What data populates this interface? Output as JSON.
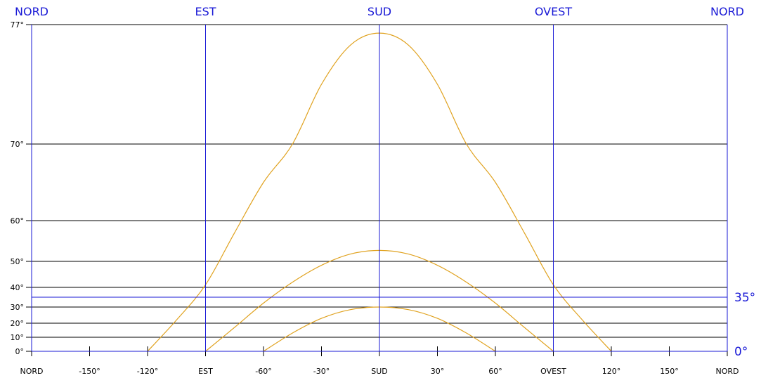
{
  "chart_data": {
    "type": "line",
    "title": "",
    "xlabel": "",
    "ylabel": "",
    "top_labels": [
      {
        "x": -180,
        "text": "NORD"
      },
      {
        "x": -90,
        "text": "EST"
      },
      {
        "x": 0,
        "text": "SUD"
      },
      {
        "x": 90,
        "text": "OVEST"
      },
      {
        "x": 180,
        "text": "NORD"
      }
    ],
    "x_ticks": [
      {
        "x": -180,
        "text": "NORD"
      },
      {
        "x": -150,
        "text": "-150°"
      },
      {
        "x": -120,
        "text": "-120°"
      },
      {
        "x": -90,
        "text": "EST"
      },
      {
        "x": -60,
        "text": "-60°"
      },
      {
        "x": -30,
        "text": "-30°"
      },
      {
        "x": 0,
        "text": "SUD"
      },
      {
        "x": 30,
        "text": "30°"
      },
      {
        "x": 60,
        "text": "60°"
      },
      {
        "x": 90,
        "text": "OVEST"
      },
      {
        "x": 120,
        "text": "120°"
      },
      {
        "x": 150,
        "text": "150°"
      },
      {
        "x": 180,
        "text": "NORD"
      }
    ],
    "y_ticks": [
      {
        "y": 0,
        "text": "0°"
      },
      {
        "y": 10,
        "text": "10°"
      },
      {
        "y": 20,
        "text": "20°"
      },
      {
        "y": 30,
        "text": "30°"
      },
      {
        "y": 40,
        "text": "40°"
      },
      {
        "y": 50,
        "text": "50°"
      },
      {
        "y": 60,
        "text": "60°"
      },
      {
        "y": 70,
        "text": "70°"
      },
      {
        "y": 77,
        "text": "77°"
      }
    ],
    "reference_lines": [
      {
        "y": 35,
        "text": "35°"
      },
      {
        "y": 0,
        "text": "0°"
      }
    ],
    "xlim": [
      -180,
      180
    ],
    "ylim": [
      0,
      77
    ],
    "series": [
      {
        "points": [
          [
            -120,
            0
          ],
          [
            -105,
            22
          ],
          [
            -90,
            41
          ],
          [
            -75,
            57
          ],
          [
            -60,
            65
          ],
          [
            -45,
            70
          ],
          [
            -30,
            73.5
          ],
          [
            -15,
            75.8
          ],
          [
            0,
            76.5
          ],
          [
            15,
            75.8
          ],
          [
            30,
            73.5
          ],
          [
            45,
            70
          ],
          [
            60,
            65
          ],
          [
            75,
            57
          ],
          [
            90,
            41
          ],
          [
            105,
            22
          ],
          [
            120,
            0
          ]
        ]
      },
      {
        "points": [
          [
            -90,
            0
          ],
          [
            -75,
            17
          ],
          [
            -60,
            32
          ],
          [
            -45,
            42
          ],
          [
            -30,
            48.5
          ],
          [
            -15,
            51.8
          ],
          [
            0,
            52.7
          ],
          [
            15,
            51.8
          ],
          [
            30,
            48.5
          ],
          [
            45,
            42
          ],
          [
            60,
            32
          ],
          [
            75,
            17
          ],
          [
            90,
            0
          ]
        ]
      },
      {
        "points": [
          [
            -60,
            0
          ],
          [
            -45,
            13
          ],
          [
            -30,
            23
          ],
          [
            -15,
            28.4
          ],
          [
            0,
            30
          ],
          [
            15,
            28.4
          ],
          [
            30,
            23
          ],
          [
            45,
            13
          ],
          [
            60,
            0
          ]
        ]
      }
    ],
    "colors": {
      "curve": "#e0a21f",
      "cardinal": "#1a1ad6",
      "grid": "#000000"
    }
  }
}
